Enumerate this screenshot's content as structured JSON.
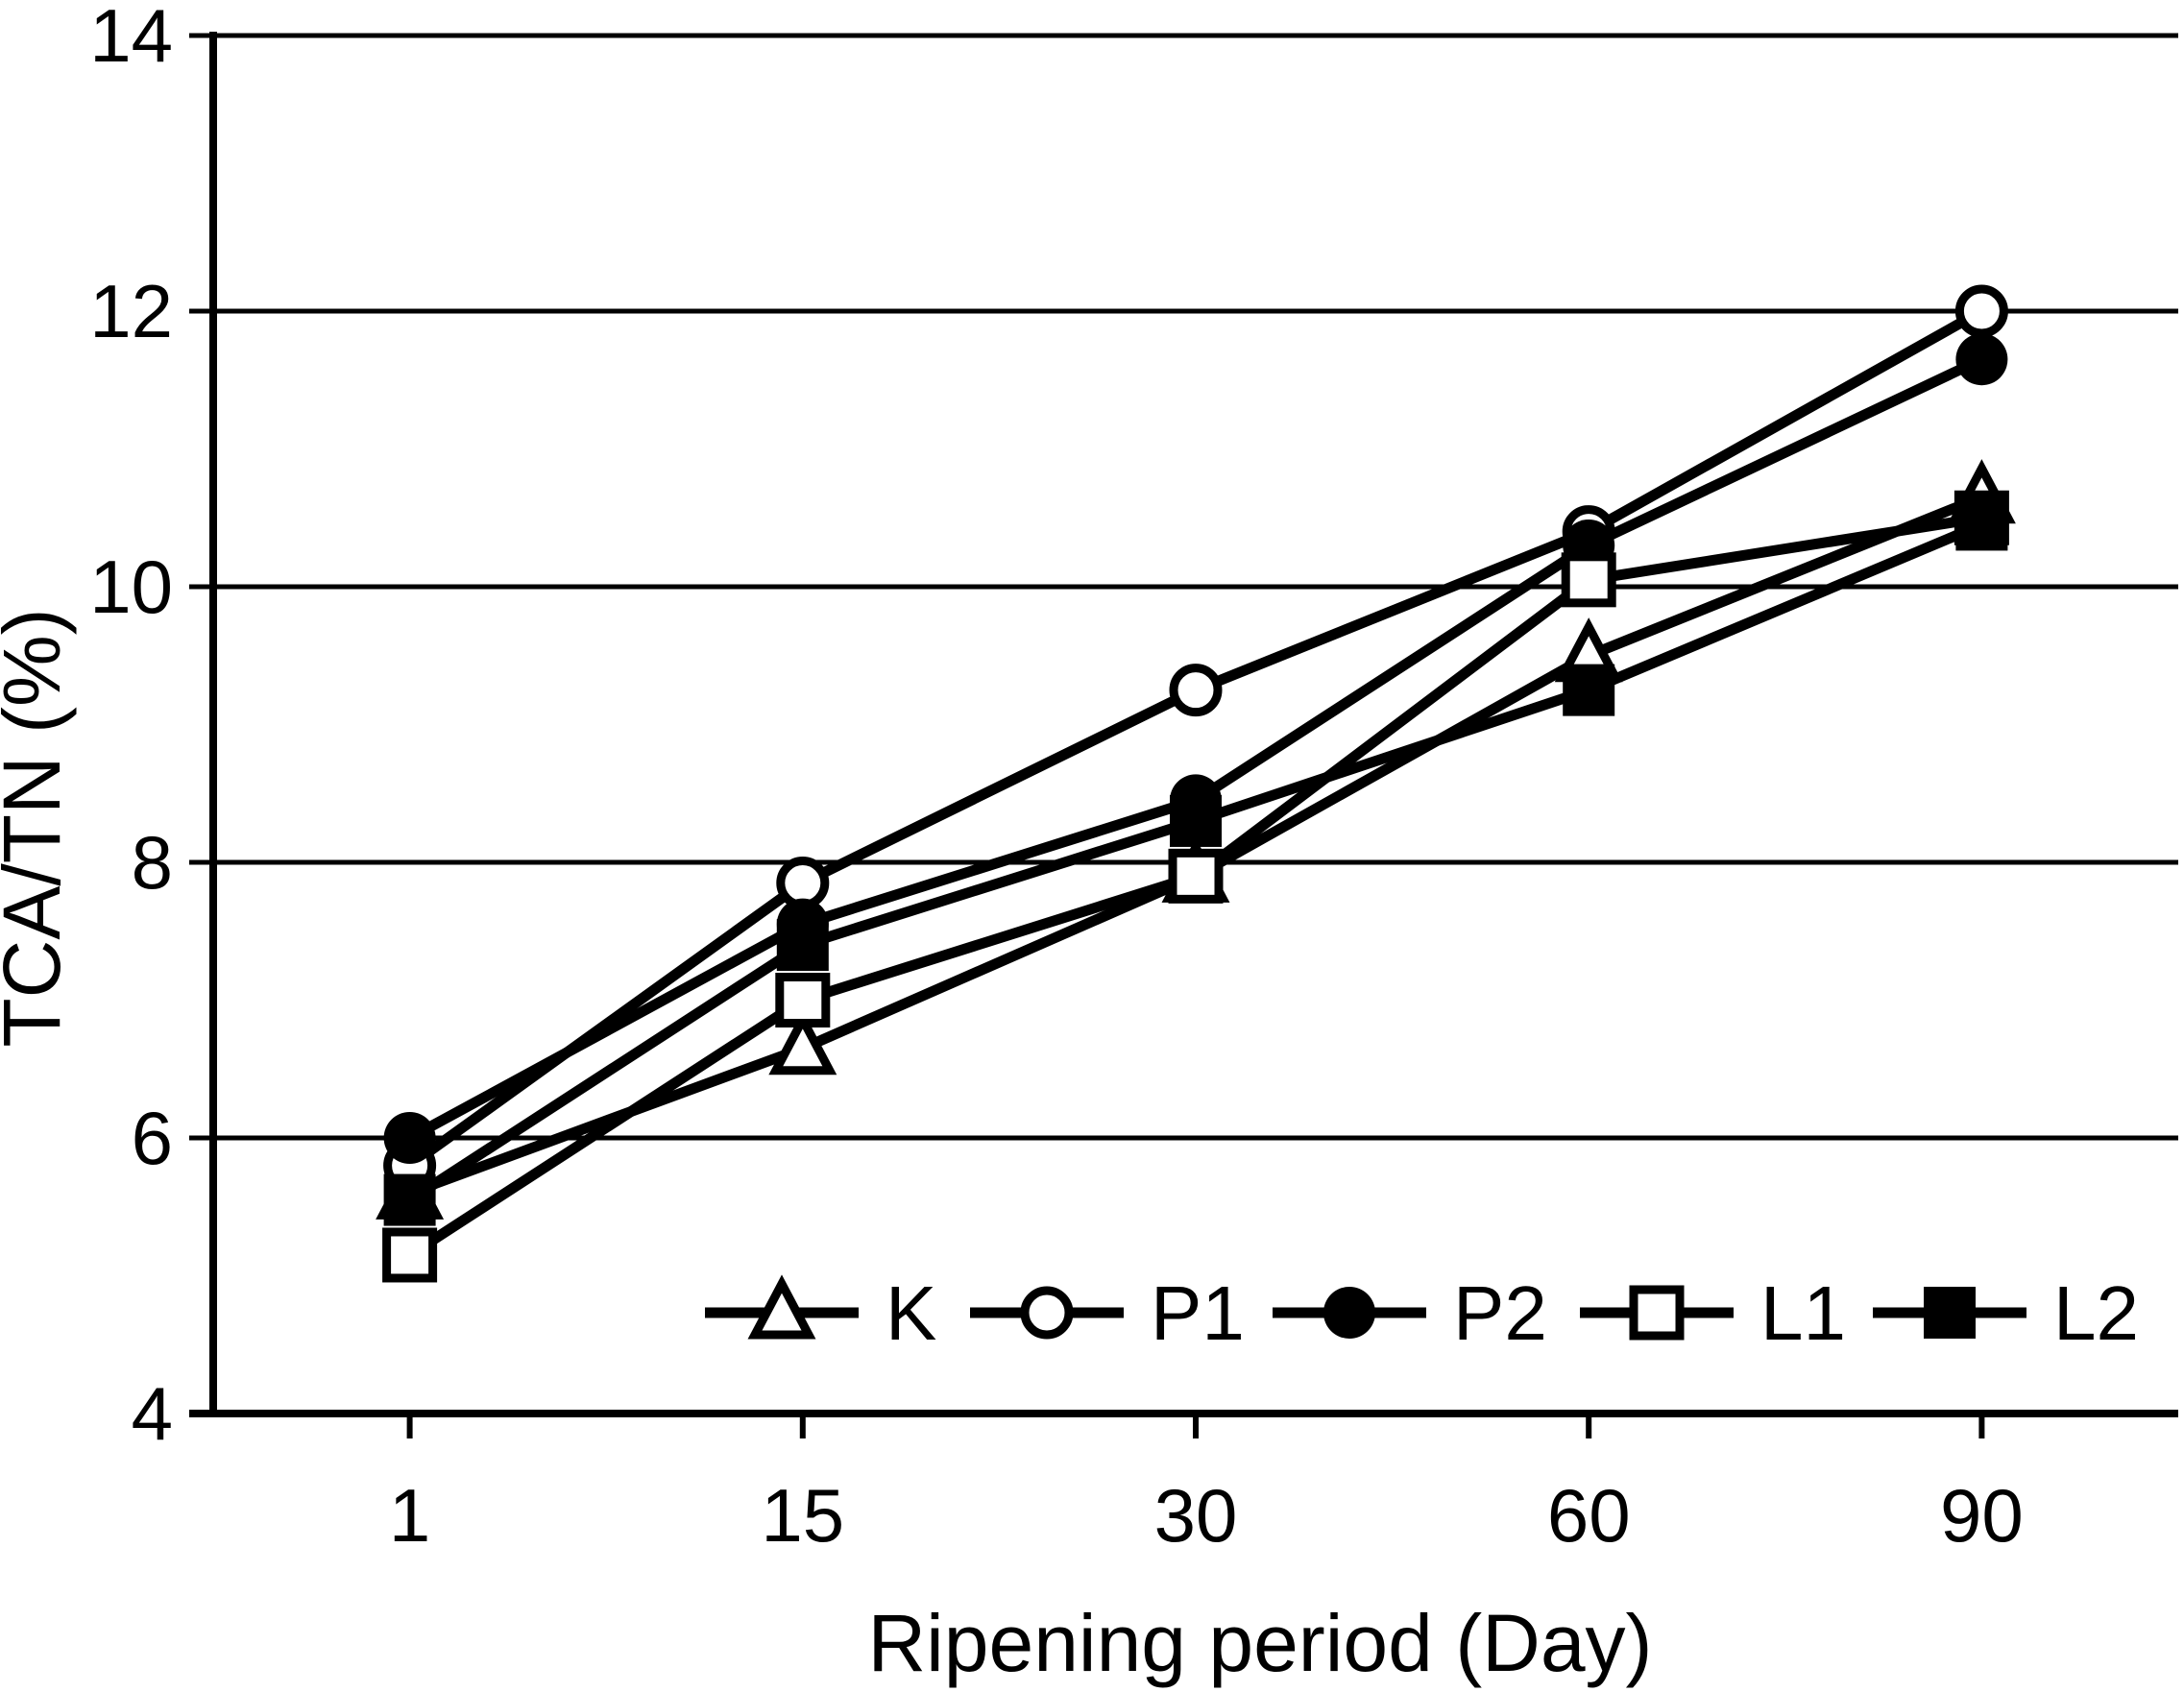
{
  "chart_data": {
    "type": "line",
    "title": "",
    "xlabel": "Ripening period (Day)",
    "ylabel": "TCA/TN (%)",
    "categories": [
      "1",
      "15",
      "30",
      "60",
      "90"
    ],
    "x_axis_title": "Ripening period (Day)",
    "y_axis_title": "TCA/TN (%)",
    "y_ticks": [
      4,
      6,
      8,
      10,
      12,
      14
    ],
    "ylim": [
      4,
      14
    ],
    "grid": true,
    "legend_position": "bottom-center-inside",
    "series": [
      {
        "name": "K",
        "marker": "triangle-open",
        "values": [
          5.6,
          6.65,
          7.9,
          9.5,
          10.65
        ]
      },
      {
        "name": "P1",
        "marker": "circle-open",
        "values": [
          5.8,
          7.85,
          9.25,
          10.4,
          12.0
        ]
      },
      {
        "name": "P2",
        "marker": "circle-filled",
        "values": [
          6.0,
          7.55,
          8.45,
          10.3,
          11.65
        ]
      },
      {
        "name": "L1",
        "marker": "square-open",
        "values": [
          5.15,
          7.0,
          7.9,
          10.05,
          10.5
        ]
      },
      {
        "name": "L2",
        "marker": "square-filled",
        "values": [
          5.55,
          7.4,
          8.3,
          9.25,
          10.45
        ]
      }
    ],
    "colors": {
      "foreground": "#000000",
      "background": "#ffffff"
    }
  }
}
